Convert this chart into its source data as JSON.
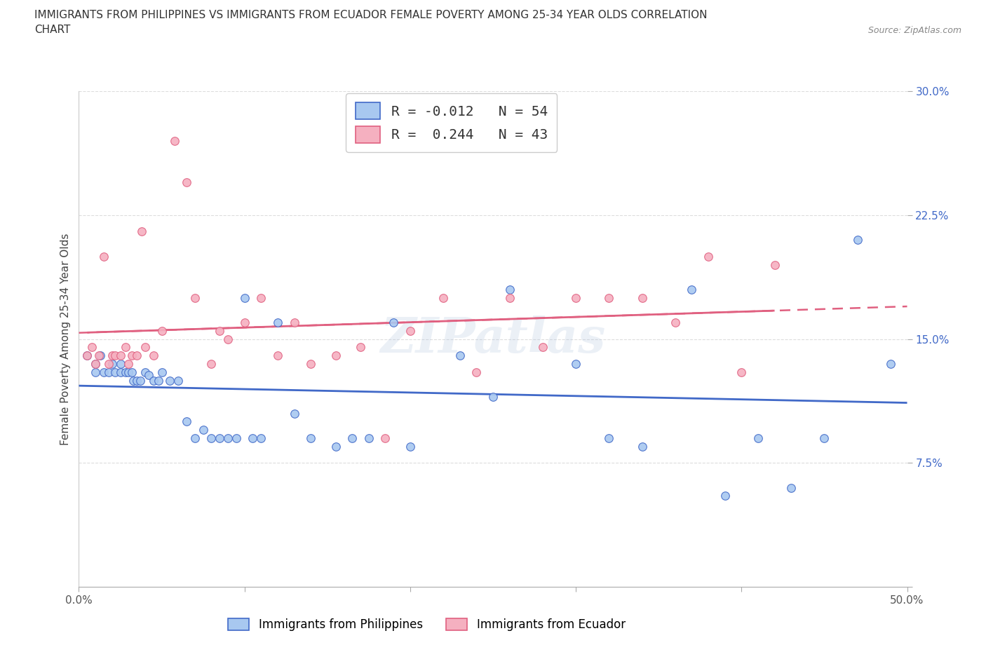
{
  "title_line1": "IMMIGRANTS FROM PHILIPPINES VS IMMIGRANTS FROM ECUADOR FEMALE POVERTY AMONG 25-34 YEAR OLDS CORRELATION",
  "title_line2": "CHART",
  "source": "Source: ZipAtlas.com",
  "ylabel": "Female Poverty Among 25-34 Year Olds",
  "xlim": [
    0.0,
    0.5
  ],
  "ylim": [
    0.0,
    0.3
  ],
  "xticks": [
    0.0,
    0.1,
    0.2,
    0.3,
    0.4,
    0.5
  ],
  "yticks": [
    0.0,
    0.075,
    0.15,
    0.225,
    0.3
  ],
  "R_philippines": -0.012,
  "N_philippines": 54,
  "R_ecuador": 0.244,
  "N_ecuador": 43,
  "color_philippines": "#A8C8F0",
  "color_ecuador": "#F5B0C0",
  "line_color_philippines": "#4169C8",
  "line_color_ecuador": "#E06080",
  "background_color": "#FFFFFF",
  "philippines_x": [
    0.005,
    0.01,
    0.01,
    0.013,
    0.015,
    0.018,
    0.02,
    0.022,
    0.025,
    0.025,
    0.028,
    0.03,
    0.032,
    0.033,
    0.035,
    0.037,
    0.04,
    0.042,
    0.045,
    0.048,
    0.05,
    0.055,
    0.06,
    0.065,
    0.07,
    0.075,
    0.08,
    0.085,
    0.09,
    0.095,
    0.1,
    0.105,
    0.11,
    0.12,
    0.13,
    0.14,
    0.155,
    0.165,
    0.175,
    0.19,
    0.2,
    0.23,
    0.25,
    0.26,
    0.3,
    0.32,
    0.34,
    0.37,
    0.39,
    0.41,
    0.43,
    0.45,
    0.47,
    0.49
  ],
  "philippines_y": [
    0.14,
    0.13,
    0.135,
    0.14,
    0.13,
    0.13,
    0.135,
    0.13,
    0.13,
    0.135,
    0.13,
    0.13,
    0.13,
    0.125,
    0.125,
    0.125,
    0.13,
    0.128,
    0.125,
    0.125,
    0.13,
    0.125,
    0.125,
    0.1,
    0.09,
    0.095,
    0.09,
    0.09,
    0.09,
    0.09,
    0.175,
    0.09,
    0.09,
    0.16,
    0.105,
    0.09,
    0.085,
    0.09,
    0.09,
    0.16,
    0.085,
    0.14,
    0.115,
    0.18,
    0.135,
    0.09,
    0.085,
    0.18,
    0.055,
    0.09,
    0.06,
    0.09,
    0.21,
    0.135
  ],
  "ecuador_x": [
    0.005,
    0.008,
    0.01,
    0.012,
    0.015,
    0.018,
    0.02,
    0.022,
    0.025,
    0.028,
    0.03,
    0.032,
    0.035,
    0.038,
    0.04,
    0.045,
    0.05,
    0.058,
    0.065,
    0.07,
    0.08,
    0.085,
    0.09,
    0.1,
    0.11,
    0.12,
    0.13,
    0.14,
    0.155,
    0.17,
    0.185,
    0.2,
    0.22,
    0.24,
    0.26,
    0.28,
    0.3,
    0.32,
    0.34,
    0.36,
    0.38,
    0.4,
    0.42
  ],
  "ecuador_y": [
    0.14,
    0.145,
    0.135,
    0.14,
    0.2,
    0.135,
    0.14,
    0.14,
    0.14,
    0.145,
    0.135,
    0.14,
    0.14,
    0.215,
    0.145,
    0.14,
    0.155,
    0.27,
    0.245,
    0.175,
    0.135,
    0.155,
    0.15,
    0.16,
    0.175,
    0.14,
    0.16,
    0.135,
    0.14,
    0.145,
    0.09,
    0.155,
    0.175,
    0.13,
    0.175,
    0.145,
    0.175,
    0.175,
    0.175,
    0.16,
    0.2,
    0.13,
    0.195
  ]
}
